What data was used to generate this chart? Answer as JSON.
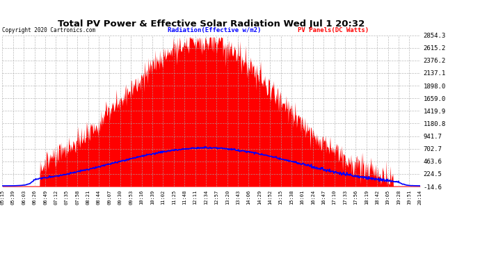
{
  "title": "Total PV Power & Effective Solar Radiation Wed Jul 1 20:32",
  "copyright": "Copyright 2020 Cartronics.com",
  "legend_radiation": "Radiation(Effective w/m2)",
  "legend_pv": "PV Panels(DC Watts)",
  "yticks": [
    2854.3,
    2615.2,
    2376.2,
    2137.1,
    1898.0,
    1659.0,
    1419.9,
    1180.8,
    941.7,
    702.7,
    463.6,
    224.5,
    -14.6
  ],
  "xtick_labels": [
    "05:15",
    "05:39",
    "06:03",
    "06:26",
    "06:49",
    "07:12",
    "07:35",
    "07:58",
    "08:21",
    "08:44",
    "09:07",
    "09:30",
    "09:53",
    "10:16",
    "10:39",
    "11:02",
    "11:25",
    "11:48",
    "12:11",
    "12:34",
    "12:57",
    "13:20",
    "13:43",
    "14:06",
    "14:29",
    "14:52",
    "15:15",
    "15:38",
    "16:01",
    "16:24",
    "16:47",
    "17:10",
    "17:33",
    "17:56",
    "18:19",
    "18:42",
    "19:05",
    "19:28",
    "19:51",
    "20:14"
  ],
  "ymin": -14.6,
  "ymax": 2854.3,
  "bg_color": "#ffffff",
  "grid_color": "#aaaaaa",
  "fill_color": "#ff0000",
  "line_color": "#0000ff",
  "title_color": "#000000",
  "copyright_color": "#000000",
  "legend_radiation_color": "#0000ff",
  "legend_pv_color": "#ff0000"
}
